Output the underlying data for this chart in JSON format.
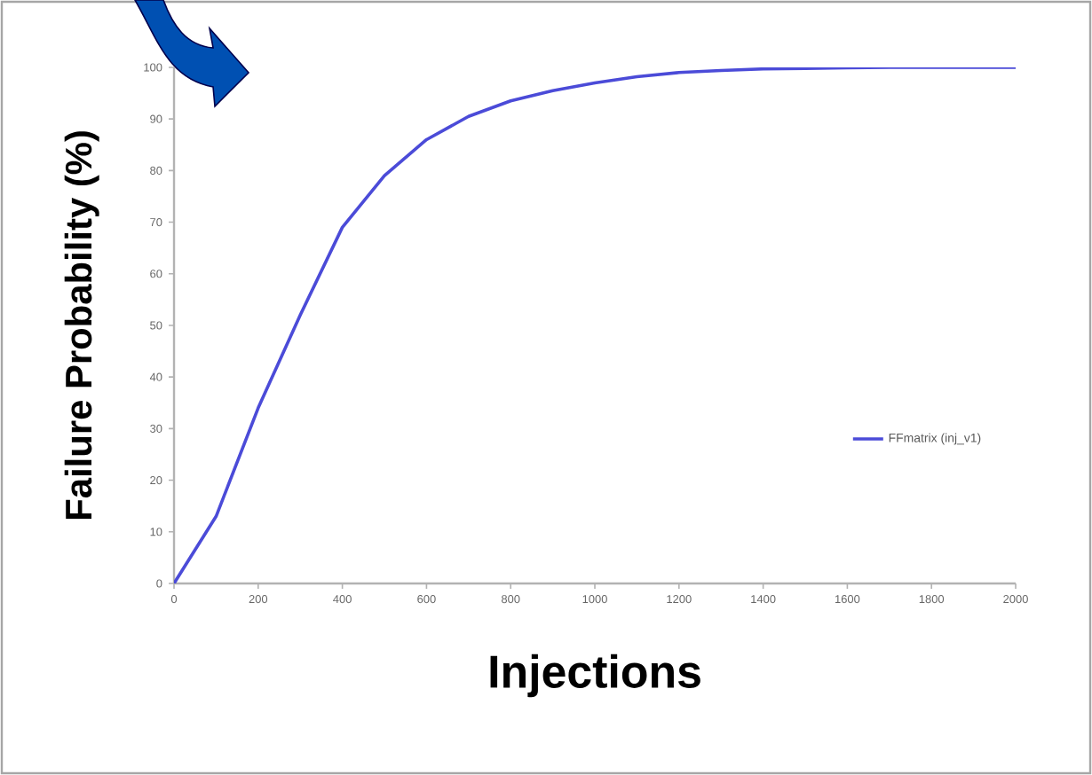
{
  "chart_data": {
    "type": "line",
    "xlabel": "Injections",
    "ylabel": "Failure Probability (%)",
    "x": [
      0,
      100,
      200,
      300,
      400,
      500,
      600,
      700,
      800,
      900,
      1000,
      1100,
      1200,
      1300,
      1400,
      1500,
      1600,
      1700,
      1800,
      1900,
      2000
    ],
    "series": [
      {
        "name": "FFmatrix (inj_v1)",
        "color": "#4b4bd8",
        "values": [
          0,
          13,
          34,
          52,
          69,
          79,
          86,
          90.5,
          93.5,
          95.5,
          97,
          98.2,
          99,
          99.4,
          99.7,
          99.8,
          99.9,
          100,
          100,
          100,
          100
        ]
      }
    ],
    "xlim": [
      0,
      2000
    ],
    "xticks": [
      0,
      200,
      400,
      600,
      800,
      1000,
      1200,
      1400,
      1600,
      1800,
      2000
    ],
    "ylim": [
      0,
      100
    ],
    "yticks": [
      0,
      10,
      20,
      30,
      40,
      50,
      60,
      70,
      80,
      90,
      100
    ],
    "legend": "right",
    "grid": false,
    "marker": "none",
    "line_style": "solid"
  }
}
